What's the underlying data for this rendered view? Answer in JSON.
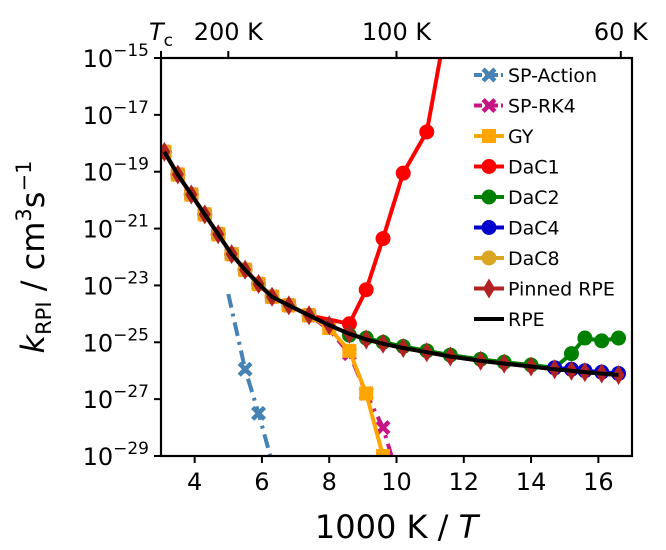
{
  "chart_data": {
    "type": "line",
    "x_axis": {
      "label": "1000 K / T",
      "label_parts": {
        "pre": "1000 K / ",
        "italic": "T"
      },
      "range": [
        3.0,
        17.0
      ],
      "ticks": [
        4,
        6,
        8,
        10,
        12,
        14,
        16
      ],
      "tick_labels": [
        "4",
        "6",
        "8",
        "10",
        "12",
        "14",
        "16"
      ]
    },
    "y_axis": {
      "label": "k_RPI / cm^3 s^-1",
      "label_parts": {
        "k": "k",
        "sub": "RPI",
        "units": " / cm",
        "cube": "3",
        "s": "s",
        "neg": "−1"
      },
      "scale": "log",
      "range_log10": [
        -29,
        -15
      ],
      "ticks": [
        -29,
        -27,
        -25,
        -23,
        -21,
        -19,
        -17,
        -15
      ],
      "tick_base": "10",
      "tick_exponents": [
        "−29",
        "−27",
        "−25",
        "−23",
        "−21",
        "−19",
        "−17",
        "−15"
      ]
    },
    "top_axis": {
      "ticks": [
        {
          "x": 3.0,
          "label_main": "T",
          "label_sub": "c"
        },
        {
          "x": 5.0,
          "label": "200 K"
        },
        {
          "x": 10.0,
          "label": "100 K"
        },
        {
          "x": 16.667,
          "label": "60 K"
        }
      ]
    },
    "series": [
      {
        "name": "SP-Action",
        "color": "#4682b4",
        "marker": "X",
        "dash": "dashdot",
        "x": [
          5.0,
          5.5,
          5.9,
          6.25
        ],
        "log10_y": [
          -23.3,
          -25.95,
          -27.5,
          -29.0
        ],
        "marker_idx": [
          1,
          2
        ]
      },
      {
        "name": "SP-RK4",
        "color": "#c71585",
        "marker": "X",
        "dash": "dashdot",
        "x": [
          3.1,
          3.5,
          3.9,
          4.3,
          4.7,
          5.1,
          5.5,
          5.9,
          6.3,
          6.8,
          7.4,
          8.0,
          8.6,
          9.1,
          9.6,
          9.85
        ],
        "log10_y": [
          -18.3,
          -19.1,
          -19.8,
          -20.5,
          -21.2,
          -21.9,
          -22.45,
          -22.95,
          -23.4,
          -23.7,
          -24.05,
          -24.55,
          -25.4,
          -26.8,
          -28.0,
          -29.0
        ],
        "marker_idx": [
          0,
          1,
          2,
          3,
          4,
          5,
          6,
          7,
          8,
          9,
          10,
          12,
          13,
          14
        ]
      },
      {
        "name": "GY",
        "color": "#ffa500",
        "marker": "s",
        "dash": "solid",
        "x": [
          3.1,
          3.5,
          3.9,
          4.3,
          4.7,
          5.1,
          5.5,
          5.9,
          6.3,
          6.8,
          7.4,
          8.0,
          8.6,
          9.1,
          9.6
        ],
        "log10_y": [
          -18.3,
          -19.1,
          -19.8,
          -20.5,
          -21.2,
          -21.9,
          -22.45,
          -22.95,
          -23.4,
          -23.7,
          -24.05,
          -24.5,
          -25.3,
          -26.8,
          -29.0
        ],
        "marker_idx": [
          0,
          1,
          2,
          3,
          4,
          5,
          6,
          7,
          8,
          9,
          10,
          11,
          12,
          13,
          14
        ]
      },
      {
        "name": "DaC1",
        "color": "#ff0000",
        "marker": "o",
        "dash": "solid",
        "x": [
          3.1,
          3.5,
          3.9,
          4.3,
          4.7,
          5.1,
          5.5,
          5.9,
          6.3,
          6.8,
          7.4,
          8.6,
          9.1,
          9.6,
          10.2,
          10.9,
          11.3
        ],
        "log10_y": [
          -18.3,
          -19.1,
          -19.8,
          -20.5,
          -21.2,
          -21.9,
          -22.45,
          -22.95,
          -23.4,
          -23.7,
          -24.05,
          -24.35,
          -23.15,
          -21.35,
          -19.05,
          -17.6,
          -15.0
        ],
        "marker_idx": [
          0,
          1,
          2,
          3,
          4,
          5,
          6,
          7,
          8,
          9,
          10,
          11,
          12,
          13,
          14,
          15
        ]
      },
      {
        "name": "DaC2",
        "color": "#008000",
        "marker": "o",
        "dash": "solid",
        "x": [
          8.6,
          9.1,
          9.6,
          10.2,
          10.9,
          11.6,
          12.5,
          13.2,
          14.0,
          14.7,
          15.2,
          15.6,
          16.1,
          16.6
        ],
        "log10_y": [
          -24.75,
          -24.85,
          -25.0,
          -25.15,
          -25.3,
          -25.45,
          -25.6,
          -25.7,
          -25.8,
          -25.9,
          -25.4,
          -24.85,
          -24.95,
          -24.85
        ],
        "marker_idx": [
          0,
          1,
          2,
          3,
          4,
          5,
          6,
          7,
          8,
          9,
          10,
          11,
          12,
          13
        ]
      },
      {
        "name": "DaC4",
        "color": "#0000cd",
        "marker": "o",
        "dash": "solid",
        "x": [
          14.7,
          15.2,
          15.6,
          16.1,
          16.6
        ],
        "log10_y": [
          -25.9,
          -25.95,
          -26.0,
          -26.05,
          -26.1
        ],
        "marker_idx": [
          0,
          1,
          2,
          3,
          4
        ]
      },
      {
        "name": "DaC8",
        "color": "#daa520",
        "marker": "o",
        "dash": "solid",
        "x": [
          3.1,
          3.5,
          3.9,
          4.3,
          4.7,
          5.1,
          5.5,
          5.9,
          6.3,
          6.8,
          7.4
        ],
        "log10_y": [
          -18.3,
          -19.1,
          -19.8,
          -20.5,
          -21.2,
          -21.9,
          -22.45,
          -22.95,
          -23.4,
          -23.7,
          -24.05
        ],
        "marker_idx": [
          0,
          1,
          2,
          3,
          4,
          5,
          6,
          7,
          8,
          9,
          10
        ]
      },
      {
        "name": "Pinned RPE",
        "color": "#b22222",
        "marker": "d",
        "dash": "solid",
        "x": [
          3.1,
          3.5,
          3.9,
          4.3,
          4.7,
          5.1,
          5.5,
          5.9,
          6.3,
          6.8,
          7.4,
          8.0,
          8.6,
          9.1,
          9.6,
          10.2,
          10.9,
          11.6,
          12.5,
          13.2,
          14.0,
          14.7,
          15.2,
          15.6,
          16.1,
          16.6
        ],
        "log10_y": [
          -18.3,
          -19.1,
          -19.8,
          -20.5,
          -21.2,
          -21.9,
          -22.45,
          -22.95,
          -23.4,
          -23.7,
          -24.05,
          -24.4,
          -24.7,
          -24.9,
          -25.05,
          -25.2,
          -25.35,
          -25.5,
          -25.65,
          -25.75,
          -25.85,
          -25.95,
          -26.0,
          -26.05,
          -26.1,
          -26.15
        ],
        "marker_idx": [
          0,
          1,
          2,
          3,
          4,
          5,
          6,
          7,
          8,
          9,
          10,
          11,
          12,
          13,
          14,
          15,
          16,
          17,
          18,
          19,
          20,
          21,
          22,
          23,
          24,
          25
        ]
      },
      {
        "name": "RPE",
        "color": "#000000",
        "marker": "none",
        "dash": "solid",
        "x": [
          3.1,
          3.5,
          3.9,
          4.3,
          4.7,
          5.1,
          5.5,
          5.9,
          6.3,
          6.8,
          7.4,
          8.0,
          8.6,
          9.1,
          9.6,
          10.2,
          10.9,
          11.6,
          12.5,
          13.2,
          14.0,
          14.7,
          15.2,
          15.6,
          16.1,
          16.6
        ],
        "log10_y": [
          -18.3,
          -19.1,
          -19.8,
          -20.5,
          -21.2,
          -21.9,
          -22.45,
          -22.95,
          -23.4,
          -23.7,
          -24.05,
          -24.4,
          -24.7,
          -24.9,
          -25.05,
          -25.2,
          -25.35,
          -25.5,
          -25.65,
          -25.75,
          -25.85,
          -25.95,
          -26.0,
          -26.05,
          -26.1,
          -26.15
        ],
        "marker_idx": []
      }
    ],
    "legend": {
      "position": "upper right",
      "entries": [
        "SP-Action",
        "SP-RK4",
        "GY",
        "DaC1",
        "DaC2",
        "DaC4",
        "DaC8",
        "Pinned RPE",
        "RPE"
      ]
    }
  }
}
